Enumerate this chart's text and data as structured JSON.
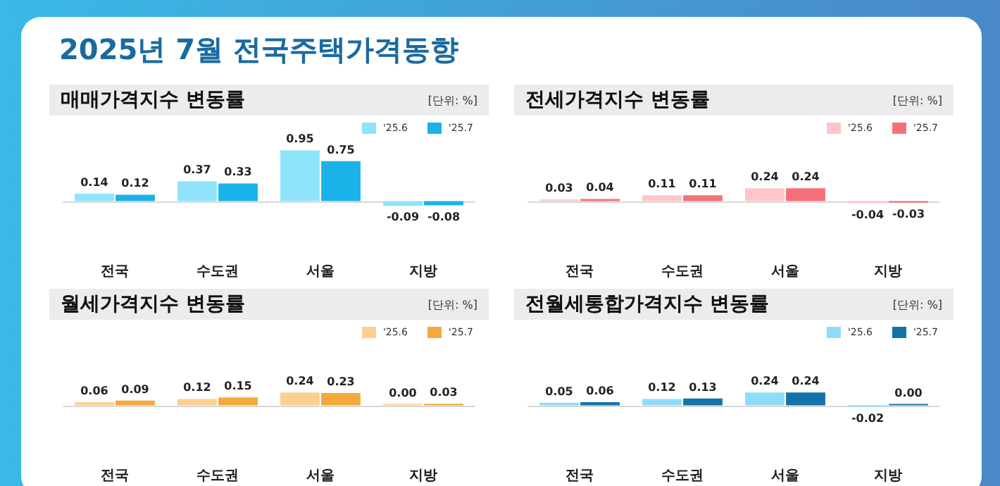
{
  "chart_data": [
    {
      "type": "bar",
      "title": "매매가격지수 변동률",
      "ylabel": "[단위: %]",
      "annotations": [
        "2025년 7월 전국주택가격동향"
      ],
      "categories": [
        "전국",
        "수도권",
        "서울",
        "지방"
      ],
      "tick_labels": "x",
      "legend": "top right",
      "series": [
        {
          "name": "'25.6",
          "color": "#8ee3fb",
          "values": [
            0.14,
            0.37,
            0.95,
            -0.09
          ],
          "value_labels": [
            "0.14",
            "0.37",
            "0.95",
            "-0.09"
          ]
        },
        {
          "name": "'25.7",
          "color": "#1ab2e8",
          "values": [
            0.12,
            0.33,
            0.75,
            -0.08
          ],
          "value_labels": [
            "0.12",
            "0.33",
            "0.75",
            "-0.08"
          ]
        }
      ]
    },
    {
      "type": "bar",
      "title": "전세가격지수 변동률",
      "ylabel": "[단위: %]",
      "categories": [
        "전국",
        "수도권",
        "서울",
        "지방"
      ],
      "tick_labels": "x",
      "legend": "top right",
      "series": [
        {
          "name": "'25.6",
          "color": "#fcc6cb",
          "values": [
            0.03,
            0.11,
            0.24,
            -0.04
          ],
          "value_labels": [
            "0.03",
            "0.11",
            "0.24",
            "-0.04"
          ]
        },
        {
          "name": "'25.7",
          "color": "#f4707a",
          "values": [
            0.04,
            0.11,
            0.24,
            -0.03
          ],
          "value_labels": [
            "0.04",
            "0.11",
            "0.24",
            "-0.03"
          ]
        }
      ]
    },
    {
      "type": "bar",
      "title": "월세가격지수 변동률",
      "ylabel": "[단위: %]",
      "categories": [
        "전국",
        "수도권",
        "서울",
        "지방"
      ],
      "tick_labels": "x",
      "legend": "top right",
      "series": [
        {
          "name": "'25.6",
          "color": "#fdd092",
          "values": [
            0.06,
            0.12,
            0.24,
            0.0
          ],
          "value_labels": [
            "0.06",
            "0.12",
            "0.24",
            "0.00"
          ]
        },
        {
          "name": "'25.7",
          "color": "#f5a93a",
          "values": [
            0.09,
            0.15,
            0.23,
            0.03
          ],
          "value_labels": [
            "0.09",
            "0.15",
            "0.23",
            "0.03"
          ]
        }
      ]
    },
    {
      "type": "bar",
      "title": "전월세통합가격지수 변동률",
      "ylabel": "[단위: %]",
      "categories": [
        "전국",
        "수도권",
        "서울",
        "지방"
      ],
      "tick_labels": "x",
      "legend": "top right",
      "series": [
        {
          "name": "'25.6",
          "color": "#8fdcf8",
          "values": [
            0.05,
            0.12,
            0.24,
            -0.02
          ],
          "value_labels": [
            "0.05",
            "0.12",
            "0.24",
            "-0.02"
          ]
        },
        {
          "name": "'25.7",
          "color": "#1373a8",
          "values": [
            0.06,
            0.13,
            0.24,
            0.0
          ],
          "value_labels": [
            "0.06",
            "0.13",
            "0.24",
            "0.00"
          ]
        }
      ]
    }
  ]
}
